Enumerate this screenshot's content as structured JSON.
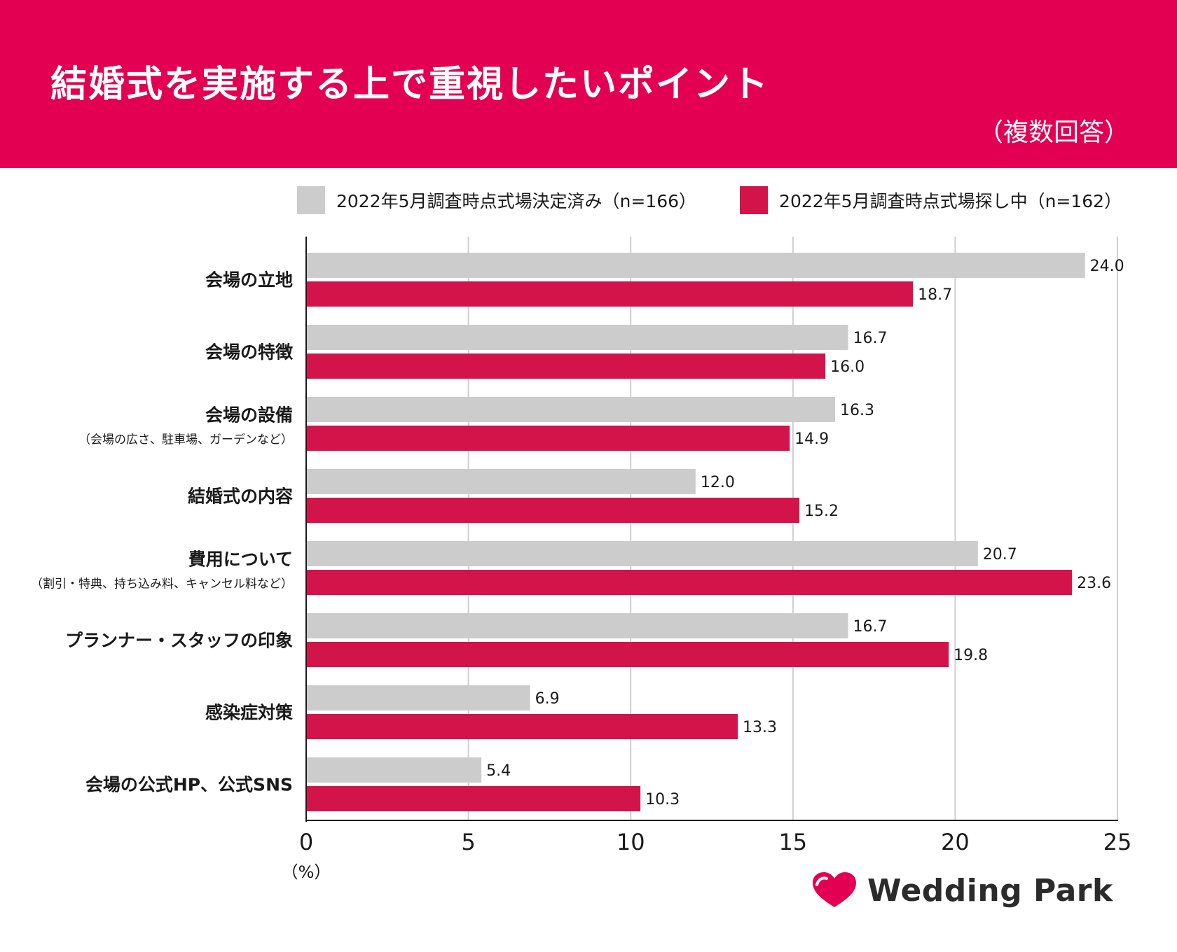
{
  "header": {
    "title": "結婚式を実施する上で重視したいポイント",
    "subtitle": "（複数回答）"
  },
  "legend": [
    {
      "label": "2022年5月調査時点式場決定済み（n=166）",
      "color": "#cccccc"
    },
    {
      "label": "2022年5月調査時点式場探し中（n=162）",
      "color": "#d3144b"
    }
  ],
  "brand": {
    "name": "Wedding Park",
    "color": "#e30052"
  },
  "colors": {
    "header": "#e30052",
    "grid": "#cfcfcf",
    "axis": "#1a1a1a"
  },
  "chart_data": {
    "type": "bar",
    "orientation": "horizontal",
    "title": "結婚式を実施する上で重視したいポイント",
    "xlabel": "（%）",
    "xlim": [
      0,
      25
    ],
    "xticks": [
      0,
      5,
      10,
      15,
      20,
      25
    ],
    "grid": true,
    "categories": [
      {
        "label": "会場の立地",
        "sub": ""
      },
      {
        "label": "会場の特徴",
        "sub": ""
      },
      {
        "label": "会場の設備",
        "sub": "（会場の広さ、駐車場、ガーデンなど）"
      },
      {
        "label": "結婚式の内容",
        "sub": ""
      },
      {
        "label": "費用について",
        "sub": "（割引・特典、持ち込み料、キャンセル料など）"
      },
      {
        "label": "プランナー・スタッフの印象",
        "sub": ""
      },
      {
        "label": "感染症対策",
        "sub": ""
      },
      {
        "label": "会場の公式HP、公式SNS",
        "sub": ""
      }
    ],
    "series": [
      {
        "name": "2022年5月調査時点式場決定済み（n=166）",
        "color": "#cccccc",
        "values": [
          "24.0",
          "16.7",
          "16.3",
          "12.0",
          "20.7",
          "16.7",
          "6.9",
          "5.4"
        ]
      },
      {
        "name": "2022年5月調査時点式場探し中（n=162）",
        "color": "#d3144b",
        "values": [
          "18.7",
          "16.0",
          "14.9",
          "15.2",
          "23.6",
          "19.8",
          "13.3",
          "10.3"
        ]
      }
    ]
  }
}
